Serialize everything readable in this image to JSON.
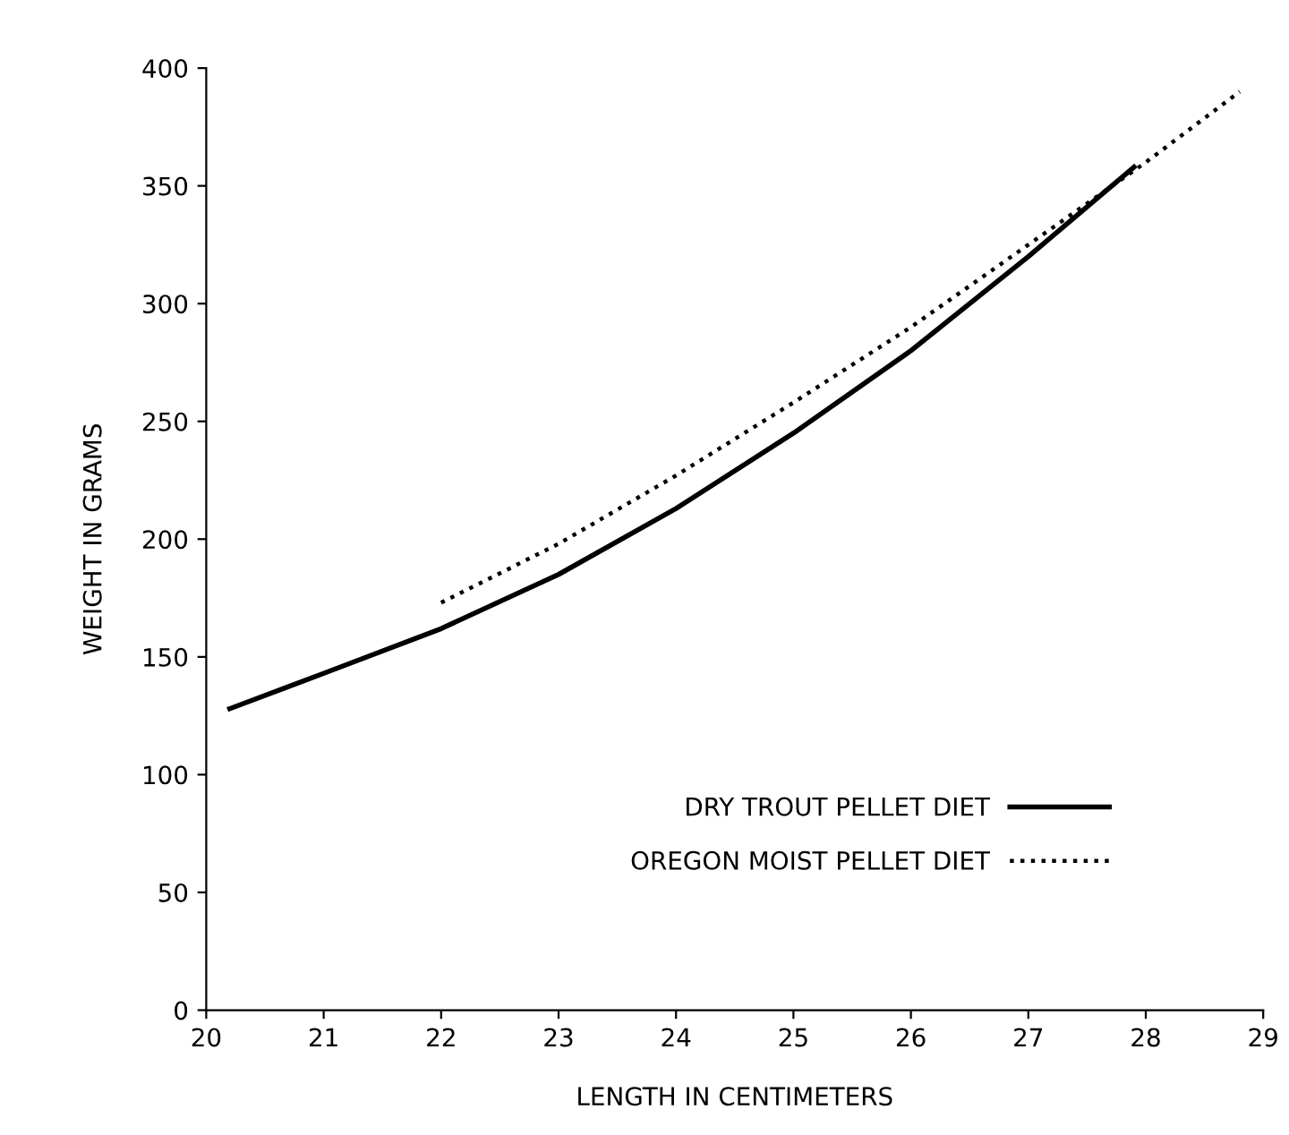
{
  "chart_data": {
    "type": "line",
    "xlabel": "LENGTH IN CENTIMETERS",
    "ylabel": "WEIGHT IN GRAMS",
    "xlim": [
      20,
      29
    ],
    "xticks": [
      20,
      21,
      22,
      23,
      24,
      25,
      26,
      27,
      28,
      29
    ],
    "ylim": [
      0,
      400
    ],
    "yticks": [
      0,
      50,
      100,
      150,
      200,
      250,
      300,
      350,
      400
    ],
    "grid": false,
    "legend": "bottom right",
    "marker": "none",
    "series": [
      {
        "name": "DRY TROUT PELLET DIET",
        "color": "#000000",
        "line_style": "solid",
        "x": [
          20.2,
          21,
          22,
          23,
          24,
          25,
          26,
          27,
          27.9
        ],
        "values": [
          128,
          143,
          162,
          185,
          213,
          245,
          280,
          320,
          358
        ]
      },
      {
        "name": "OREGON MOIST PELLET DIET",
        "color": "#000000",
        "line_style": "dotted",
        "x": [
          22,
          23,
          24,
          25,
          26,
          27,
          28,
          28.8
        ],
        "values": [
          173,
          198,
          227,
          258,
          290,
          325,
          360,
          390
        ]
      }
    ]
  }
}
